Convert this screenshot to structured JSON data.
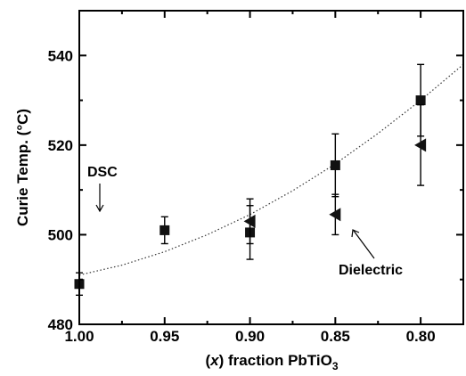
{
  "chart_data": {
    "type": "scatter",
    "title": "",
    "xlabel_prefix": "(",
    "xlabel_var": "x",
    "xlabel_mid": ") fraction PbTiO",
    "xlabel_sub": "3",
    "ylabel": "Curie Temp. (°C)",
    "xlim": [
      1.0,
      0.775
    ],
    "ylim": [
      480,
      550
    ],
    "x_reversed": true,
    "x_ticks": [
      1.0,
      0.95,
      0.9,
      0.85,
      0.8
    ],
    "x_tick_labels": [
      "1.00",
      "0.95",
      "0.90",
      "0.85",
      "0.80"
    ],
    "y_ticks": [
      480,
      500,
      520,
      540
    ],
    "y_tick_labels": [
      "480",
      "500",
      "520",
      "540"
    ],
    "grid": false,
    "series": [
      {
        "name": "DSC",
        "marker": "square",
        "points": [
          {
            "x": 1.0,
            "y": 489,
            "err": 2.5
          },
          {
            "x": 0.95,
            "y": 501,
            "err": 3
          },
          {
            "x": 0.9,
            "y": 500.5,
            "err": 6
          },
          {
            "x": 0.85,
            "y": 515.5,
            "err": 7
          },
          {
            "x": 0.8,
            "y": 530,
            "err": 8
          }
        ]
      },
      {
        "name": "Dielectric",
        "marker": "left-triangle",
        "points": [
          {
            "x": 0.9,
            "y": 503,
            "err": 5
          },
          {
            "x": 0.85,
            "y": 504.5,
            "err": 4.5
          },
          {
            "x": 0.8,
            "y": 520,
            "err": 9
          }
        ]
      }
    ],
    "fit_curve": {
      "style": "dotted",
      "x": [
        1.0,
        0.975,
        0.95,
        0.925,
        0.9,
        0.875,
        0.85,
        0.825,
        0.8,
        0.775
      ],
      "y": [
        491.0,
        493.2,
        496.2,
        500.0,
        504.5,
        509.8,
        515.8,
        522.6,
        530.0,
        538.0
      ]
    },
    "annotations": [
      {
        "text": "DSC",
        "series": "DSC"
      },
      {
        "text": "Dielectric",
        "series": "Dielectric"
      }
    ]
  }
}
